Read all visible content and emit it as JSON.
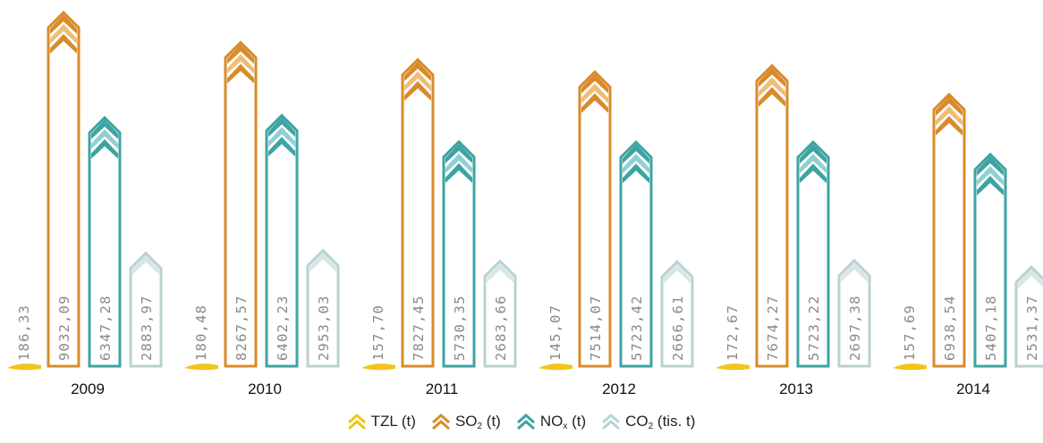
{
  "chart_data": {
    "type": "bar",
    "categories": [
      "2009",
      "2010",
      "2011",
      "2012",
      "2013",
      "2014"
    ],
    "series": [
      {
        "name": "TZL (t)",
        "values": [
          186.33,
          180.48,
          157.7,
          145.07,
          172.67,
          157.69
        ],
        "labels": [
          "186,33",
          "180,48",
          "157,70",
          "145,07",
          "172,67",
          "157,69"
        ]
      },
      {
        "name": "SO2 (t)",
        "values": [
          9032.09,
          8267.57,
          7827.45,
          7514.07,
          7674.27,
          6938.54
        ],
        "labels": [
          "9032,09",
          "8267,57",
          "7827,45",
          "7514,07",
          "7674,27",
          "6938,54"
        ]
      },
      {
        "name": "NOx (t)",
        "values": [
          6347.28,
          6402.23,
          5730.35,
          5723.42,
          5723.22,
          5407.18
        ],
        "labels": [
          "6347,28",
          "6402,23",
          "5730,35",
          "5723,42",
          "5723,22",
          "5407,18"
        ]
      },
      {
        "name": "CO2 (tis. t)",
        "values": [
          2883.97,
          2953.03,
          2683.66,
          2666.61,
          2697.38,
          2531.37
        ],
        "labels": [
          "2883,97",
          "2953,03",
          "2683,66",
          "2666,61",
          "2697,38",
          "2531,37"
        ]
      }
    ],
    "legend": {
      "position": "bottom",
      "items": [
        {
          "base": "TZL",
          "sub": "",
          "suffix": " (t)"
        },
        {
          "base": "SO",
          "sub": "2",
          "suffix": " (t)"
        },
        {
          "base": "NO",
          "sub": "x",
          "suffix": " (t)"
        },
        {
          "base": "CO",
          "sub": "2",
          "suffix": " (tis. t)"
        }
      ]
    },
    "colors": [
      "#f2c51a",
      "#d98b2a",
      "#3ea3a3",
      "#b9d2d2"
    ],
    "grid": false
  }
}
